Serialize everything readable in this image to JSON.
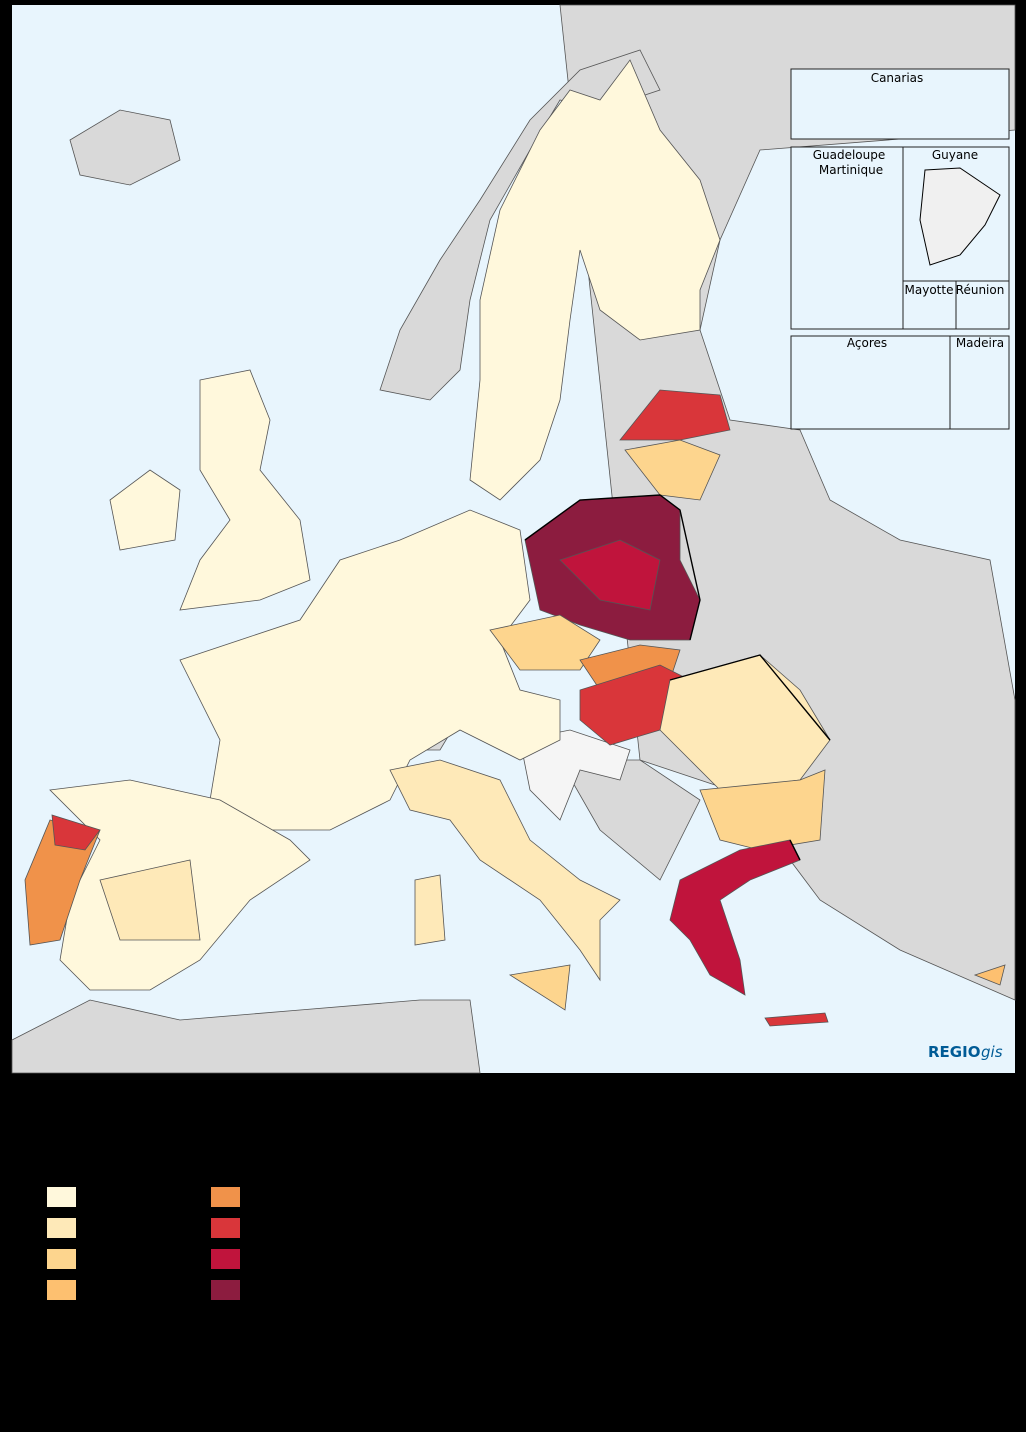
{
  "insets": {
    "canarias": "Canarias",
    "guadeloupe": "Guadeloupe",
    "martinique": "Martinique",
    "guyane": "Guyane",
    "mayotte": "Mayotte",
    "reunion": "Réunion",
    "acores": "Açores",
    "madeira": "Madeira"
  },
  "logo": {
    "regio": "REGIO",
    "gis": "gis"
  },
  "legend": {
    "colors": [
      "#fff8dc",
      "#fee9b8",
      "#fdd58e",
      "#fdc070",
      "#f0924a",
      "#d9363a",
      "#c0143c",
      "#8c1c3f"
    ]
  }
}
